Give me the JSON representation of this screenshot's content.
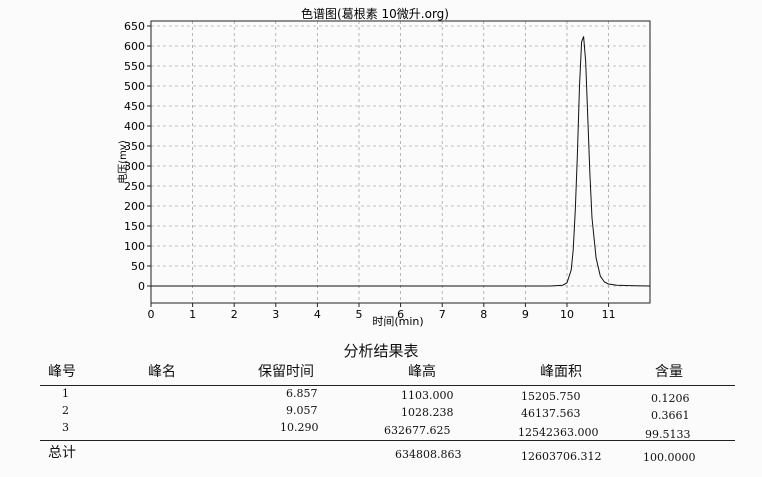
{
  "chart_data": {
    "type": "line",
    "title": "色谱图(葛根素 10微升.org)",
    "xlabel": "时间(min)",
    "ylabel": "电压(mv)",
    "xlim": [
      0,
      12
    ],
    "ylim": [
      -20,
      660
    ],
    "xticks": [
      0,
      1,
      2,
      3,
      4,
      5,
      6,
      7,
      8,
      9,
      10,
      11
    ],
    "yticks": [
      0,
      50,
      100,
      150,
      200,
      250,
      300,
      350,
      400,
      450,
      500,
      550,
      600,
      650
    ],
    "grid": true,
    "series": [
      {
        "x": [
          0,
          1,
          2,
          3,
          4,
          5,
          6,
          7,
          8,
          9,
          9.6,
          9.9,
          10.0,
          10.1,
          10.15,
          10.2,
          10.25,
          10.3,
          10.35,
          10.4,
          10.45,
          10.5,
          10.55,
          10.6,
          10.7,
          10.8,
          10.9,
          11.0,
          11.2,
          11.5,
          12.0
        ],
        "y": [
          0,
          0,
          0,
          0,
          0,
          0,
          0,
          0,
          0,
          0,
          0,
          2,
          8,
          40,
          90,
          190,
          330,
          500,
          610,
          624,
          560,
          420,
          280,
          170,
          70,
          25,
          10,
          5,
          2,
          1,
          0
        ]
      }
    ]
  },
  "table": {
    "title": "分析结果表",
    "headers": [
      "峰号",
      "峰名",
      "保留时间",
      "峰高",
      "峰面积",
      "含量"
    ],
    "rows": [
      {
        "no": "1",
        "name": "",
        "rt": "6.857",
        "height": "1103.000",
        "area": "15205.750",
        "content": "0.1206"
      },
      {
        "no": "2",
        "name": "",
        "rt": "9.057",
        "height": "1028.238",
        "area": "46137.563",
        "content": "0.3661"
      },
      {
        "no": "3",
        "name": "",
        "rt": "10.290",
        "height": "632677.625",
        "area": "12542363.000",
        "content": "99.5133"
      }
    ],
    "total": {
      "label": "总计",
      "height": "634808.863",
      "area": "12603706.312",
      "content": "100.0000"
    }
  }
}
